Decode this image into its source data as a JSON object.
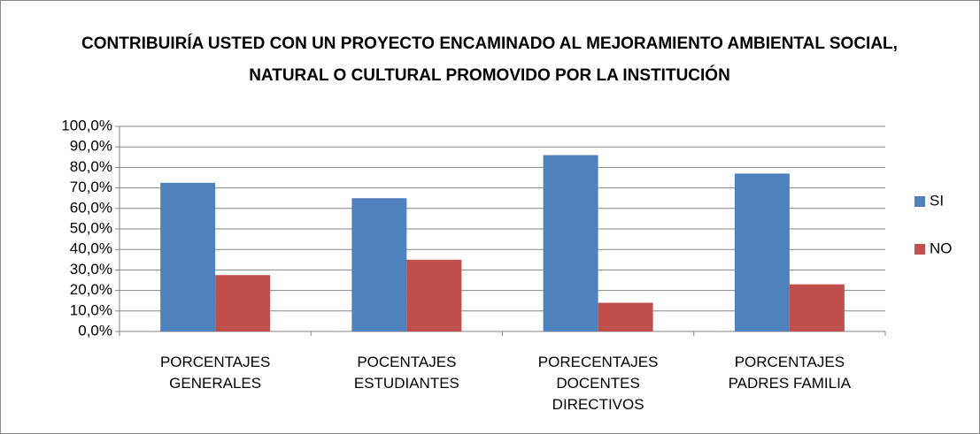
{
  "chart_data": {
    "type": "bar",
    "title": "CONTRIBUIRÍA USTED CON UN PROYECTO ENCAMINADO AL MEJORAMIENTO AMBIENTAL SOCIAL, NATURAL O CULTURAL PROMOVIDO POR LA INSTITUCIÓN",
    "categories": [
      "PORCENTAJES GENERALES",
      "POCENTAJES ESTUDIANTES",
      "PORECENTAJES DOCENTES DIRECTIVOS",
      "PORCENTAJES PADRES FAMILIA"
    ],
    "series": [
      {
        "name": "SI",
        "color": "#4f81bd",
        "values": [
          72.5,
          65,
          86,
          77
        ]
      },
      {
        "name": "NO",
        "color": "#c0504d",
        "values": [
          27.5,
          35,
          14,
          23
        ]
      }
    ],
    "ylim": [
      0,
      100
    ],
    "yticks": [
      {
        "value": 0,
        "label": "0,0%"
      },
      {
        "value": 10,
        "label": "10,0%"
      },
      {
        "value": 20,
        "label": "20,0%"
      },
      {
        "value": 30,
        "label": "30,0%"
      },
      {
        "value": 40,
        "label": "40,0%"
      },
      {
        "value": 50,
        "label": "50,0%"
      },
      {
        "value": 60,
        "label": "60,0%"
      },
      {
        "value": 70,
        "label": "70,0%"
      },
      {
        "value": 80,
        "label": "80,0%"
      },
      {
        "value": 90,
        "label": "90,0%"
      },
      {
        "value": 100,
        "label": "100,0%"
      }
    ],
    "grid": true,
    "legend": "right"
  }
}
